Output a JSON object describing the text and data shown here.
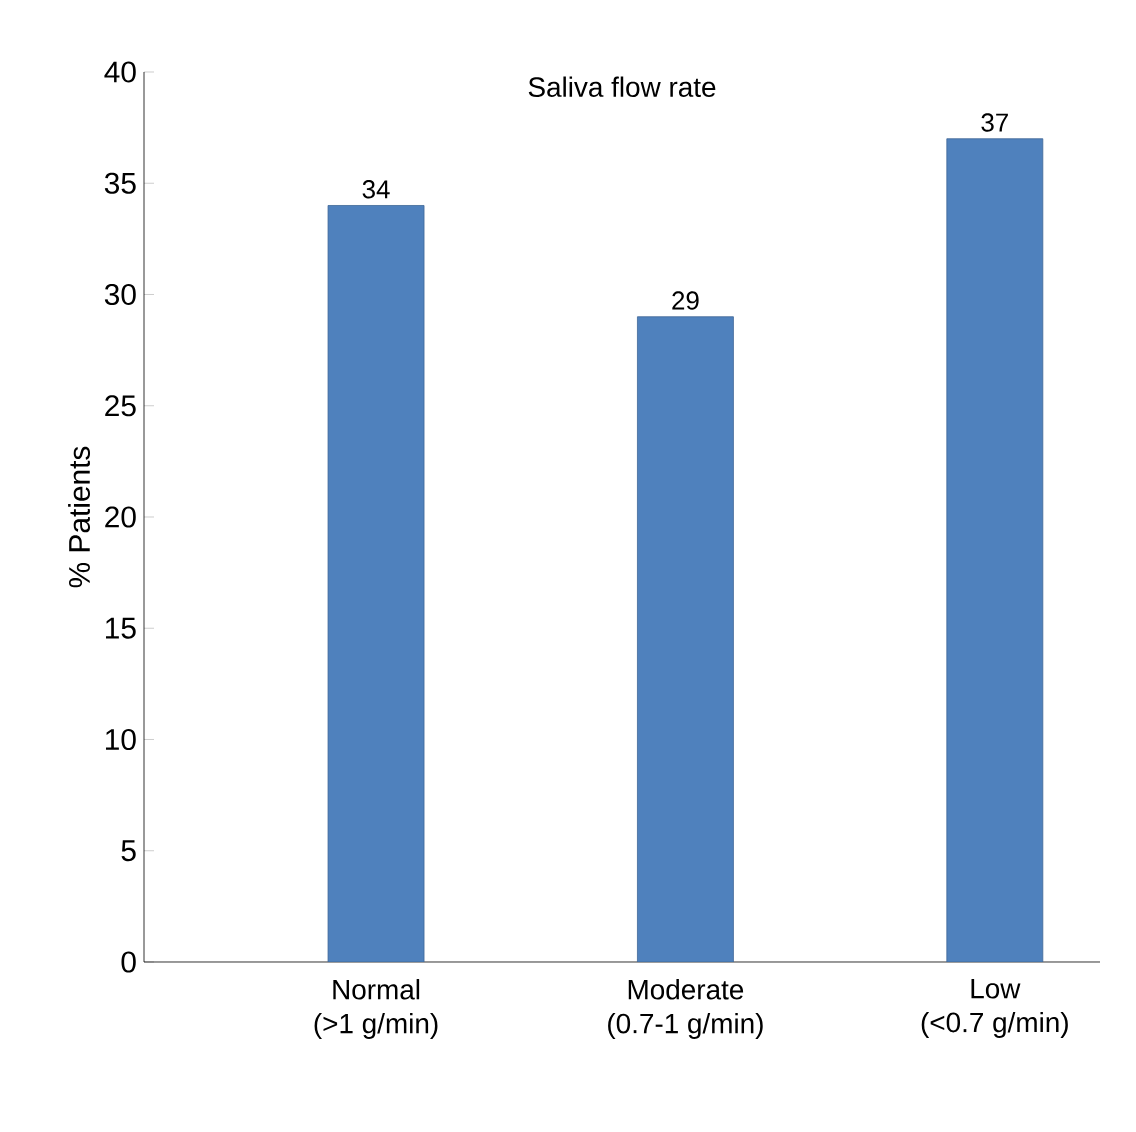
{
  "chart_data": {
    "type": "bar",
    "title": "Saliva flow rate",
    "ylabel": "% Patients",
    "categories": [
      "Normal\n(>1 g/min)",
      "Moderate\n(0.7-1 g/min)",
      "Low\n(<0.7 g/min)"
    ],
    "values": [
      34,
      29,
      37
    ],
    "color": "#4f81bd",
    "ylim": [
      0,
      40
    ],
    "yticks": [
      0,
      5,
      10,
      15,
      20,
      25,
      30,
      35,
      40
    ],
    "data_labels": true
  }
}
